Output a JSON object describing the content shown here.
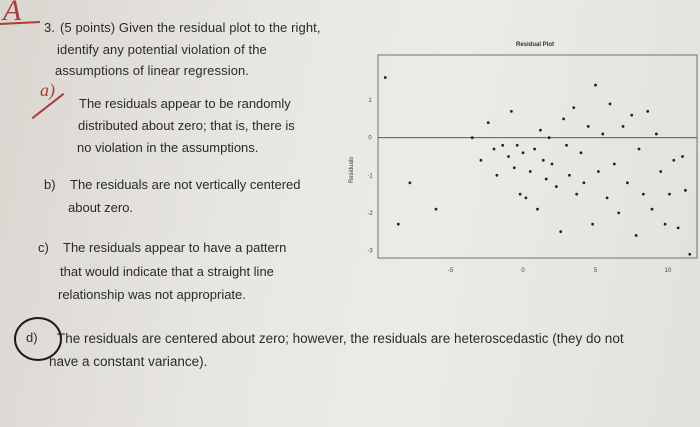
{
  "question": {
    "number": "3.",
    "line1": "(5 points) Given the residual plot to the right,",
    "line2": "identify any potential violation of the",
    "line3": "assumptions of linear regression."
  },
  "handwriting": {
    "score_mark": "A",
    "check_a": "a)",
    "circle_d": "d)"
  },
  "options": {
    "a": {
      "label": "a)",
      "lines": [
        "The residuals appear to be randomly",
        "distributed about zero; that is, there is",
        "no violation in the assumptions."
      ]
    },
    "b": {
      "label": "b)",
      "lines": [
        "The residuals are not vertically centered",
        "about zero."
      ]
    },
    "c": {
      "label": "c)",
      "lines": [
        "The residuals appear to have a pattern",
        "that would indicate that a straight line",
        "relationship was not appropriate."
      ]
    },
    "d": {
      "label": "d)",
      "lines": [
        "The residuals are centered about zero; however, the residuals are heteroscedastic (they do not",
        "have a constant variance)."
      ]
    }
  },
  "chart_data": {
    "type": "scatter",
    "title": "Residual Plot",
    "xlabel": "",
    "ylabel": "Residuals",
    "xlim": [
      -10,
      12
    ],
    "ylim": [
      -3.2,
      2.2
    ],
    "x_ticks": [
      "-5",
      "0",
      "5",
      "10"
    ],
    "y_ticks": [
      "1",
      "0",
      "-1",
      "-2",
      "-3"
    ],
    "zero_line": true,
    "points": [
      [
        -9.5,
        1.6
      ],
      [
        -8.6,
        -2.3
      ],
      [
        -7.8,
        -1.2
      ],
      [
        -6.0,
        -1.9
      ],
      [
        -3.5,
        0.0
      ],
      [
        -2.9,
        -0.6
      ],
      [
        -2.4,
        0.4
      ],
      [
        -2.0,
        -0.3
      ],
      [
        -1.8,
        -1.0
      ],
      [
        -1.4,
        -0.2
      ],
      [
        -1.0,
        -0.5
      ],
      [
        -0.8,
        0.7
      ],
      [
        -0.6,
        -0.8
      ],
      [
        -0.4,
        -0.2
      ],
      [
        -0.2,
        -1.5
      ],
      [
        0.0,
        -0.4
      ],
      [
        0.2,
        -1.6
      ],
      [
        0.5,
        -0.9
      ],
      [
        0.8,
        -0.3
      ],
      [
        1.0,
        -1.9
      ],
      [
        1.2,
        0.2
      ],
      [
        1.4,
        -0.6
      ],
      [
        1.6,
        -1.1
      ],
      [
        1.8,
        0.0
      ],
      [
        2.0,
        -0.7
      ],
      [
        2.3,
        -1.3
      ],
      [
        2.6,
        -2.5
      ],
      [
        2.8,
        0.5
      ],
      [
        3.0,
        -0.2
      ],
      [
        3.2,
        -1.0
      ],
      [
        3.5,
        0.8
      ],
      [
        3.7,
        -1.5
      ],
      [
        4.0,
        -0.4
      ],
      [
        4.2,
        -1.2
      ],
      [
        4.5,
        0.3
      ],
      [
        4.8,
        -2.3
      ],
      [
        5.0,
        1.4
      ],
      [
        5.2,
        -0.9
      ],
      [
        5.5,
        0.1
      ],
      [
        5.8,
        -1.6
      ],
      [
        6.0,
        0.9
      ],
      [
        6.3,
        -0.7
      ],
      [
        6.6,
        -2.0
      ],
      [
        6.9,
        0.3
      ],
      [
        7.2,
        -1.2
      ],
      [
        7.5,
        0.6
      ],
      [
        7.8,
        -2.6
      ],
      [
        8.0,
        -0.3
      ],
      [
        8.3,
        -1.5
      ],
      [
        8.6,
        0.7
      ],
      [
        8.9,
        -1.9
      ],
      [
        9.2,
        0.1
      ],
      [
        9.5,
        -0.9
      ],
      [
        9.8,
        -2.3
      ],
      [
        10.1,
        -1.5
      ],
      [
        10.4,
        -0.6
      ],
      [
        10.7,
        -2.4
      ],
      [
        11.0,
        -0.5
      ],
      [
        11.2,
        -1.4
      ],
      [
        11.5,
        -3.1
      ]
    ]
  }
}
